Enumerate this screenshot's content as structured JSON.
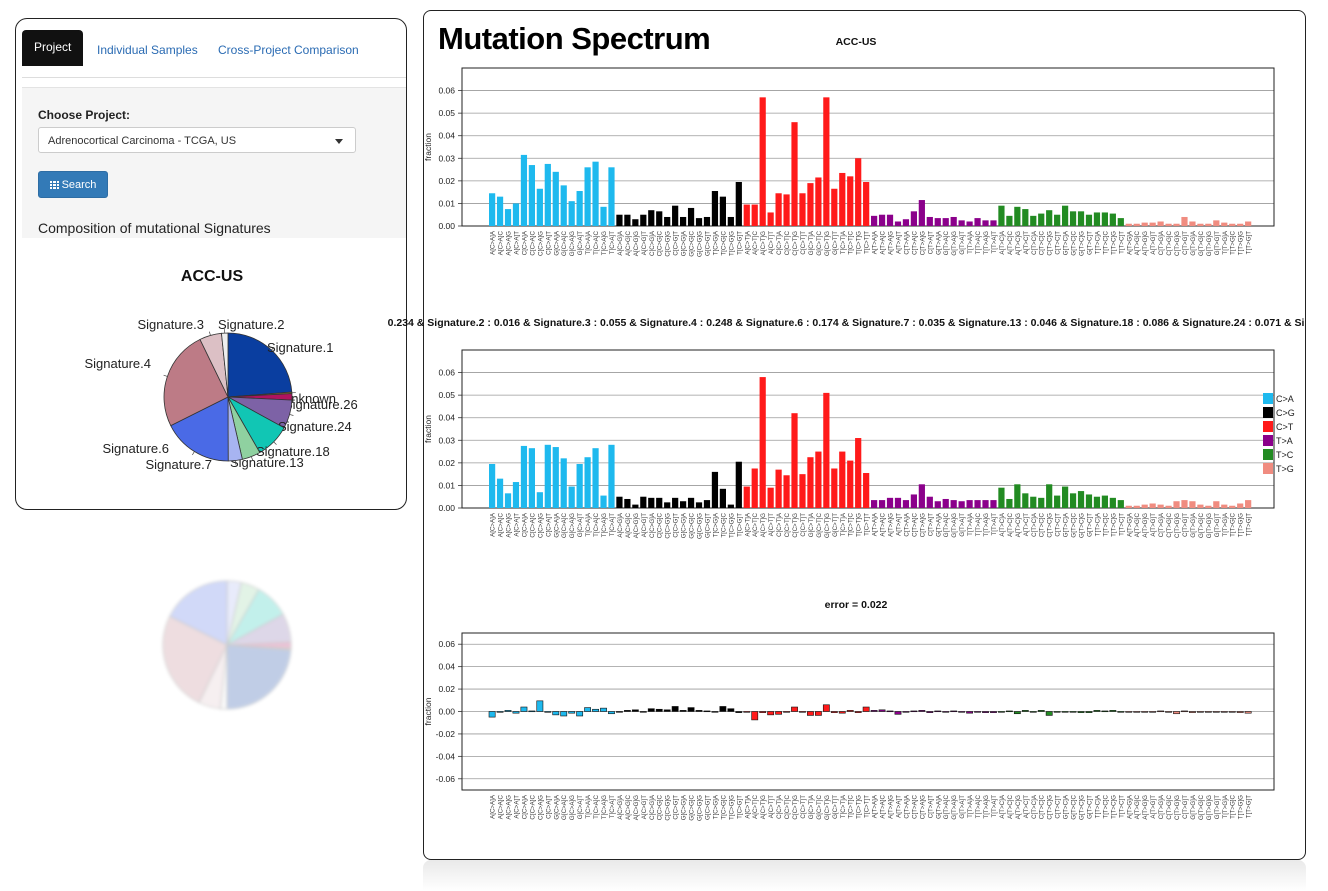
{
  "tabs": [
    {
      "label": "Project",
      "active": true
    },
    {
      "label": "Individual Samples",
      "active": false
    },
    {
      "label": "Cross-Project Comparison",
      "active": false
    }
  ],
  "form": {
    "project_label": "Choose Project:",
    "project_value": "Adrenocortical Carcinoma - TCGA, US",
    "search_label": "Search"
  },
  "composition_label": "Composition of mutational Signatures",
  "pie": {
    "title": "ACC-US",
    "slices": [
      {
        "name": "Signature.1",
        "value": 0.234,
        "color": "#0a3ea0"
      },
      {
        "name": "unknown",
        "value": 0.004,
        "color": "#8a6b2a"
      },
      {
        "name": "Signature.26",
        "value": 0.016,
        "color": "#b0135f"
      },
      {
        "name": "Signature.24",
        "value": 0.071,
        "color": "#7d62a6"
      },
      {
        "name": "Signature.18",
        "value": 0.086,
        "color": "#11c6b4"
      },
      {
        "name": "Signature.13",
        "value": 0.046,
        "color": "#8fd1a0"
      },
      {
        "name": "Signature.7",
        "value": 0.035,
        "color": "#a7b4f1"
      },
      {
        "name": "Signature.6",
        "value": 0.174,
        "color": "#4a6ae6"
      },
      {
        "name": "Signature.4",
        "value": 0.248,
        "color": "#bd7b86"
      },
      {
        "name": "Signature.3",
        "value": 0.055,
        "color": "#dcc0c5"
      },
      {
        "name": "Signature.2",
        "value": 0.016,
        "color": "#eeeeee"
      }
    ]
  },
  "spectrum": {
    "heading": "Mutation Spectrum",
    "chart1_title": "ACC-US",
    "chart2_title": "0.234 & Signature.2 : 0.016 & Signature.3 : 0.055 & Signature.4 : 0.248 & Signature.6 : 0.174 & Signature.7 : 0.035 & Signature.13 : 0.046 & Signature.18 : 0.086 & Signature.24 : 0.071 & Si",
    "chart3_title": "error = 0.022",
    "ylabel": "fraction",
    "legend": [
      {
        "label": "C>A",
        "color": "#1eb9ee"
      },
      {
        "label": "C>G",
        "color": "#000000"
      },
      {
        "label": "C>T",
        "color": "#ff1a1a"
      },
      {
        "label": "T>A",
        "color": "#8b008b"
      },
      {
        "label": "T>C",
        "color": "#228b22"
      },
      {
        "label": "T>G",
        "color": "#f08c80"
      }
    ]
  },
  "chart_data": [
    {
      "type": "bar",
      "title": "ACC-US",
      "ylabel": "fraction",
      "ylim": [
        0,
        0.07
      ],
      "yticks": [
        "0.00",
        "0.01",
        "0.02",
        "0.03",
        "0.04",
        "0.05",
        "0.06"
      ],
      "values": [
        0.0145,
        0.013,
        0.0075,
        0.01,
        0.0315,
        0.027,
        0.0165,
        0.0275,
        0.024,
        0.018,
        0.011,
        0.0155,
        0.026,
        0.0285,
        0.0085,
        0.026,
        0.005,
        0.005,
        0.003,
        0.005,
        0.007,
        0.0065,
        0.004,
        0.009,
        0.004,
        0.008,
        0.0035,
        0.004,
        0.0155,
        0.013,
        0.004,
        0.0195,
        0.0095,
        0.0095,
        0.057,
        0.006,
        0.0145,
        0.014,
        0.046,
        0.0145,
        0.019,
        0.0215,
        0.057,
        0.0165,
        0.0235,
        0.022,
        0.03,
        0.0195,
        0.0045,
        0.005,
        0.005,
        0.002,
        0.003,
        0.0065,
        0.0115,
        0.004,
        0.0035,
        0.0035,
        0.004,
        0.0025,
        0.002,
        0.0035,
        0.0025,
        0.0025,
        0.009,
        0.0045,
        0.0085,
        0.0075,
        0.0045,
        0.0055,
        0.007,
        0.005,
        0.009,
        0.0065,
        0.0065,
        0.005,
        0.006,
        0.006,
        0.0055,
        0.0035,
        0.001,
        0.001,
        0.0015,
        0.0015,
        0.002,
        0.001,
        0.001,
        0.004,
        0.002,
        0.001,
        0.001,
        0.0025,
        0.0015,
        0.001,
        0.001,
        0.002
      ]
    },
    {
      "type": "bar",
      "title": "0.234 & Signature.2 : 0.016 & Signature.3 : 0.055 & Signature.4 : 0.248 & Signature.6 : 0.174 & Signature.7 : 0.035 & Signature.13 : 0.046 & Signature.18 : 0.086 & Signature.24 : 0.071 & Si",
      "ylabel": "fraction",
      "ylim": [
        0,
        0.07
      ],
      "yticks": [
        "0.00",
        "0.01",
        "0.02",
        "0.03",
        "0.04",
        "0.05",
        "0.06"
      ],
      "values": [
        0.0195,
        0.013,
        0.0065,
        0.0115,
        0.0275,
        0.0265,
        0.007,
        0.028,
        0.027,
        0.022,
        0.0095,
        0.0195,
        0.0225,
        0.0265,
        0.0055,
        0.028,
        0.005,
        0.004,
        0.0015,
        0.005,
        0.0045,
        0.0045,
        0.0025,
        0.0045,
        0.003,
        0.0045,
        0.0025,
        0.0035,
        0.016,
        0.0085,
        0.0015,
        0.0205,
        0.0095,
        0.0175,
        0.058,
        0.009,
        0.017,
        0.0145,
        0.042,
        0.015,
        0.0225,
        0.025,
        0.051,
        0.0175,
        0.025,
        0.021,
        0.031,
        0.0155,
        0.0035,
        0.0035,
        0.0045,
        0.0045,
        0.0035,
        0.006,
        0.0105,
        0.005,
        0.003,
        0.004,
        0.0035,
        0.003,
        0.0035,
        0.0035,
        0.0035,
        0.0035,
        0.009,
        0.004,
        0.0105,
        0.0065,
        0.005,
        0.0045,
        0.0105,
        0.0055,
        0.0095,
        0.0065,
        0.0075,
        0.006,
        0.005,
        0.0055,
        0.0045,
        0.0035,
        0.001,
        0.001,
        0.0015,
        0.002,
        0.0015,
        0.001,
        0.003,
        0.0035,
        0.003,
        0.0015,
        0.001,
        0.003,
        0.0015,
        0.001,
        0.002,
        0.0035
      ]
    },
    {
      "type": "bar",
      "title": "error = 0.022",
      "ylabel": "fraction",
      "ylim": [
        -0.07,
        0.07
      ],
      "yticks": [
        "-0.06",
        "-0.04",
        "-0.02",
        "0.00",
        "0.02",
        "0.04",
        "0.06"
      ],
      "values": [
        -0.005,
        0,
        0.001,
        -0.0015,
        0.004,
        0.0005,
        0.0095,
        -0.0005,
        -0.003,
        -0.004,
        -0.0015,
        -0.004,
        0.0035,
        0.002,
        0.003,
        -0.002,
        0,
        0.001,
        0.0015,
        0,
        0.0025,
        0.002,
        0.0015,
        0.0045,
        0.001,
        0.0035,
        0.001,
        0.0005,
        -0.0005,
        0.0045,
        0.0025,
        -0.001,
        0,
        -0.0075,
        -0.001,
        -0.003,
        -0.0025,
        -0.0005,
        0.004,
        -0.0005,
        -0.0035,
        -0.0035,
        0.006,
        -0.001,
        -0.0015,
        0.001,
        -0.001,
        0.004,
        0.001,
        0.0015,
        0.0005,
        -0.0025,
        -0.0005,
        0.0005,
        0.001,
        -0.001,
        0.0005,
        -0.0005,
        0.0005,
        -0.0005,
        -0.0015,
        0,
        -0.001,
        -0.001,
        0,
        0.0005,
        -0.002,
        0.001,
        -0.0005,
        0.001,
        -0.0035,
        -0.0005,
        -0.0005,
        0,
        -0.001,
        -0.001,
        0.001,
        0.0005,
        0.001,
        0,
        0,
        0,
        0,
        -0.0005,
        0.0005,
        0,
        -0.002,
        0.0005,
        -0.001,
        -0.0005,
        0,
        -0.0005,
        0,
        0,
        -0.001,
        -0.0015
      ]
    }
  ]
}
